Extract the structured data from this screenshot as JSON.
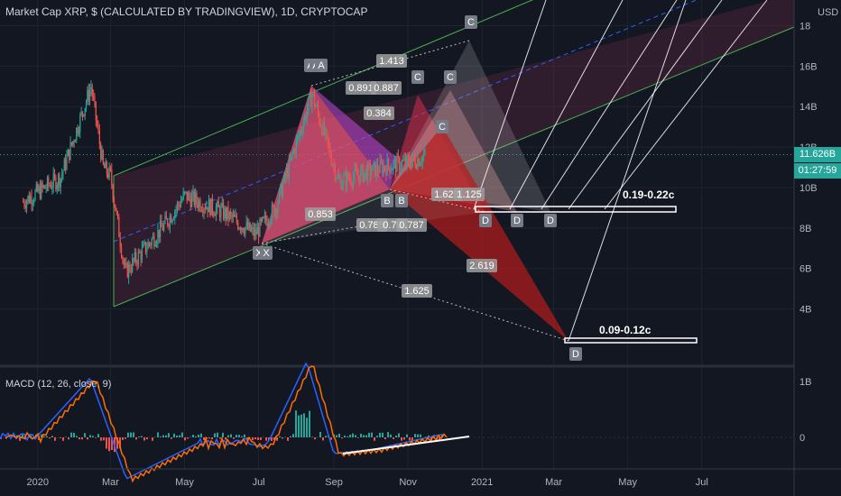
{
  "header": {
    "title": "Market Cap XRP, $ (CALCULATED BY TRADINGVIEW), 1D, CRYPTOCAP",
    "currency": "USD"
  },
  "price_badges": {
    "last_value": "11.626B",
    "countdown": "01:27:59"
  },
  "macd": {
    "title": "MACD (12, 26, close, 9)"
  },
  "targets": [
    {
      "label": "0.19-0.22c"
    },
    {
      "label": "0.09-0.12c"
    }
  ],
  "pattern_labels": [
    "X",
    "X",
    "A",
    "A",
    "A",
    "B",
    "B",
    "C",
    "C",
    "C",
    "C",
    "D",
    "D",
    "D",
    "D"
  ],
  "ratio_labels": [
    "1.413",
    "0.891",
    "0.887",
    "0.384",
    "1.625",
    "2.619",
    "1.628",
    "1.125",
    "0.785",
    "0.70",
    "0.787",
    "0.853"
  ],
  "chart_data": [
    {
      "type": "candlestick",
      "title": "Market Cap XRP, $ (CALCULATED BY TRADINGVIEW), 1D, CRYPTOCAP",
      "x_ticks": [
        "2020",
        "Mar",
        "May",
        "Jul",
        "Sep",
        "Nov",
        "2021",
        "Mar",
        "May",
        "Jul"
      ],
      "y_ticks": [
        "4B",
        "6B",
        "8B",
        "10B",
        "12B",
        "14B",
        "16B",
        "18"
      ],
      "y_unit": "USD",
      "ylim": [
        2.2,
        18.6
      ],
      "last_value": "11.626B",
      "series_keypoints": [
        {
          "date": "2019-12-20",
          "value": 9.3
        },
        {
          "date": "2020-01-20",
          "value": 10.5
        },
        {
          "date": "2020-02-14",
          "value": 15.0
        },
        {
          "date": "2020-02-24",
          "value": 11.0
        },
        {
          "date": "2020-03-01",
          "value": 10.6
        },
        {
          "date": "2020-03-13",
          "value": 5.8
        },
        {
          "date": "2020-04-15",
          "value": 8.2
        },
        {
          "date": "2020-05-01",
          "value": 9.6
        },
        {
          "date": "2020-06-01",
          "value": 8.8
        },
        {
          "date": "2020-06-28",
          "value": 7.7
        },
        {
          "date": "2020-07-15",
          "value": 9.0
        },
        {
          "date": "2020-08-14",
          "value": 14.6
        },
        {
          "date": "2020-09-05",
          "value": 10.3
        },
        {
          "date": "2020-10-10",
          "value": 11.0
        },
        {
          "date": "2020-11-06",
          "value": 11.3
        },
        {
          "date": "2020-11-15",
          "value": 11.6
        }
      ],
      "annotations": [
        "0.19-0.22c",
        "0.09-0.12c"
      ],
      "grid": true
    },
    {
      "type": "bar",
      "title": "MACD (12, 26, close, 9)",
      "y_ticks": [
        "1B",
        "0"
      ],
      "series": [
        {
          "name": "MACD",
          "color": "#2962ff"
        },
        {
          "name": "Signal",
          "color": "#ff6d00"
        },
        {
          "name": "Histogram",
          "color": "#26a69a"
        }
      ]
    }
  ]
}
